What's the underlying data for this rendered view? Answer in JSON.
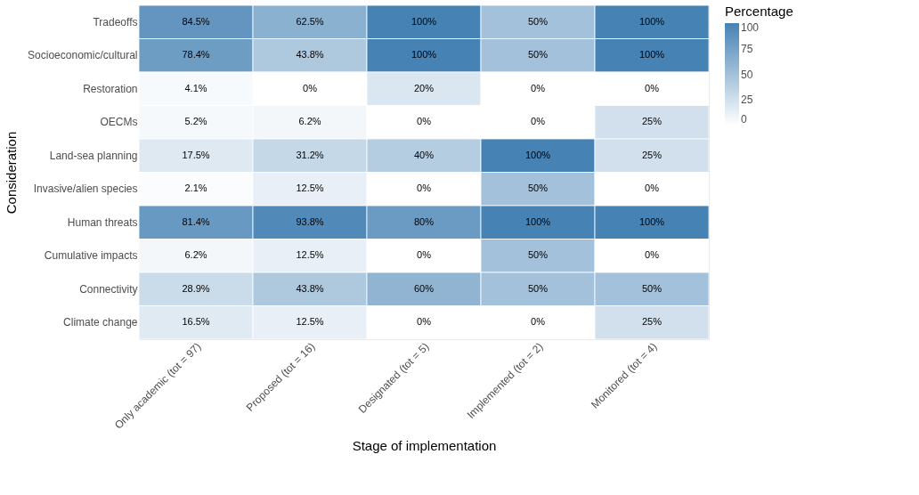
{
  "chart_data": {
    "type": "heatmap",
    "xlabel": "Stage of implementation",
    "ylabel": "Consideration",
    "legend_title": "Percentage",
    "categories": [
      "Only academic (tot = 97)",
      "Proposed (tot = 16)",
      "Designated (tot = 5)",
      "Implemented (tot = 2)",
      "Monitored (tot = 4)"
    ],
    "y_categories": [
      "Tradeoffs",
      "Socioeconomic/cultural",
      "Restoration",
      "OECMs",
      "Land-sea planning",
      "Invasive/alien species",
      "Human threats",
      "Cumulative impacts",
      "Connectivity",
      "Climate change"
    ],
    "cells": [
      [
        84.5,
        62.5,
        100,
        50,
        100
      ],
      [
        78.4,
        43.8,
        100,
        50,
        100
      ],
      [
        4.1,
        0,
        20,
        0,
        0
      ],
      [
        5.2,
        6.2,
        0,
        0,
        25
      ],
      [
        17.5,
        31.2,
        40,
        100,
        25
      ],
      [
        2.1,
        12.5,
        0,
        50,
        0
      ],
      [
        81.4,
        93.8,
        80,
        100,
        100
      ],
      [
        6.2,
        12.5,
        0,
        50,
        0
      ],
      [
        28.9,
        43.8,
        60,
        50,
        50
      ],
      [
        16.5,
        12.5,
        0,
        0,
        25
      ]
    ],
    "cell_labels": [
      [
        "84.5%",
        "62.5%",
        "100%",
        "50%",
        "100%"
      ],
      [
        "78.4%",
        "43.8%",
        "100%",
        "50%",
        "100%"
      ],
      [
        "4.1%",
        "0%",
        "20%",
        "0%",
        "0%"
      ],
      [
        "5.2%",
        "6.2%",
        "0%",
        "0%",
        "25%"
      ],
      [
        "17.5%",
        "31.2%",
        "40%",
        "100%",
        "25%"
      ],
      [
        "2.1%",
        "12.5%",
        "0%",
        "50%",
        "0%"
      ],
      [
        "81.4%",
        "93.8%",
        "80%",
        "100%",
        "100%"
      ],
      [
        "6.2%",
        "12.5%",
        "0%",
        "50%",
        "0%"
      ],
      [
        "28.9%",
        "43.8%",
        "60%",
        "50%",
        "50%"
      ],
      [
        "16.5%",
        "12.5%",
        "0%",
        "0%",
        "25%"
      ]
    ],
    "clim": [
      0,
      100
    ],
    "cticks": [
      0,
      25,
      50,
      75,
      100
    ],
    "grid": false
  }
}
